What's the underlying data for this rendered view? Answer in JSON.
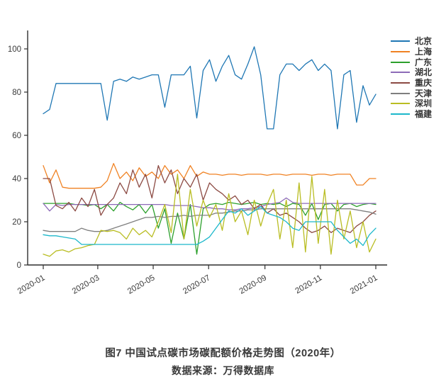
{
  "figure": {
    "caption_title": "图7 中国试点碳市场碳配额价格走势图（2020年）",
    "caption_source": "数据来源：万得数据库"
  },
  "chart_data": {
    "type": "line",
    "title": "中国试点碳市场碳配额价格走势图（2020年）",
    "xlabel": "",
    "ylabel": "",
    "grid": false,
    "legend_position": "right",
    "axis_color": "#2f2f2f",
    "tick_label_color": "#3a3a3a",
    "x_axis": {
      "tick_labels": [
        "2020-01",
        "2020-03",
        "2020-05",
        "2020-07",
        "2020-09",
        "2020-11",
        "2021-01"
      ],
      "tick_day_offsets": [
        0,
        60,
        121,
        182,
        244,
        305,
        366
      ],
      "span_days": 366,
      "label_rotation_deg": 30
    },
    "y_axis": {
      "ticks": [
        0,
        20,
        40,
        60,
        80,
        100
      ],
      "range": [
        0,
        108.5
      ]
    },
    "x_sampling": "weekly index 0-52 spanning 2020-01 to 2021-01",
    "series": [
      {
        "name": "北京",
        "id": "beijing",
        "color": "#1f77b4",
        "values": [
          70,
          72,
          84,
          84,
          84,
          84,
          84,
          84,
          84,
          84,
          67,
          85,
          86,
          85,
          87,
          86,
          87,
          88,
          88,
          73,
          88,
          88,
          88,
          92,
          68,
          90,
          95,
          85,
          92,
          97,
          88,
          86,
          93,
          101,
          88,
          63,
          63,
          88,
          93,
          93,
          90,
          93,
          95,
          90,
          93,
          90,
          63,
          88,
          90,
          66,
          83,
          74,
          79
        ]
      },
      {
        "name": "上海",
        "id": "shanghai",
        "color": "#f08223",
        "values": [
          46,
          38,
          44,
          36,
          35.5,
          35.5,
          35.5,
          35.5,
          35.5,
          36,
          39,
          47,
          40,
          43,
          39,
          45,
          41,
          43,
          40,
          46,
          42,
          44,
          40,
          46,
          41,
          43,
          42,
          42,
          41.5,
          42,
          42,
          41.5,
          42,
          42,
          42,
          41.5,
          42,
          42,
          41.5,
          42,
          42,
          42,
          41.5,
          42,
          42,
          41.5,
          42,
          42,
          42,
          37,
          37,
          40,
          40
        ]
      },
      {
        "name": "广东",
        "id": "guangdong",
        "color": "#2ca02c",
        "values": [
          28.5,
          28.5,
          28.5,
          28.5,
          28.5,
          28,
          28,
          27.5,
          28,
          26,
          28,
          25,
          29,
          27,
          25.5,
          28,
          24,
          28,
          17,
          26,
          10,
          24,
          12,
          28,
          5,
          26,
          28,
          28.5,
          28,
          29,
          28.5,
          28,
          28.5,
          29,
          28,
          28.5,
          28,
          28.5,
          27,
          28.5,
          28,
          23,
          28.5,
          21,
          28,
          28.5,
          25,
          28,
          28.5,
          27,
          28,
          28.5,
          28
        ]
      },
      {
        "name": "湖北",
        "id": "hubei",
        "color": "#8d6bb8",
        "values": [
          28.5,
          25,
          28,
          27.5,
          28,
          28,
          28,
          28,
          28,
          28,
          28,
          28,
          28,
          28,
          28,
          28,
          28,
          28,
          28,
          28,
          27.5,
          27.5,
          27.5,
          27.5,
          27,
          26.5,
          26.5,
          26,
          26,
          25.5,
          25.5,
          26,
          26,
          26.5,
          27,
          28,
          28.5,
          29,
          31,
          29,
          28.5,
          28.5,
          28.5,
          28.5,
          28.5,
          28.5,
          28.5,
          28.5,
          28.5,
          28.5,
          28.5,
          28.5,
          28.5
        ]
      },
      {
        "name": "重庆",
        "id": "chongqing",
        "color": "#8c4a43",
        "values": [
          40,
          40,
          27.5,
          26,
          29,
          25,
          31,
          27,
          35,
          23,
          28,
          31,
          38,
          33,
          44,
          36,
          42,
          31,
          46,
          38,
          44,
          33,
          40,
          36,
          42,
          30,
          38,
          35,
          33,
          30,
          32,
          28,
          30,
          26,
          28,
          24,
          26,
          23,
          24,
          22,
          20,
          17,
          15,
          16,
          18,
          15,
          17,
          16,
          15,
          18,
          20,
          23,
          25
        ]
      },
      {
        "name": "天津",
        "id": "tianjin",
        "color": "#7f7f7f",
        "values": [
          16,
          15.5,
          15.5,
          15.5,
          15.5,
          15.5,
          17,
          16,
          15.5,
          15.5,
          16,
          17,
          18,
          19,
          20,
          21,
          22,
          22,
          22.5,
          22,
          22.5,
          22.5,
          23,
          22.5,
          23,
          23,
          23,
          24,
          24,
          24.5,
          25,
          25,
          25.5,
          25.5,
          26,
          26,
          26,
          26,
          26,
          26,
          26,
          26,
          26,
          26,
          26,
          26,
          26,
          26,
          26,
          25.5,
          25,
          24.5,
          23.5
        ]
      },
      {
        "name": "深圳",
        "id": "shenzhen",
        "color": "#b9bd22",
        "values": [
          5,
          4,
          6.5,
          7,
          6,
          7.5,
          8,
          9,
          9.5,
          16,
          15.5,
          16,
          15,
          12,
          17,
          14,
          16,
          13,
          20,
          28,
          15,
          42,
          12,
          35,
          18,
          30,
          22,
          28,
          16,
          33,
          20,
          25,
          14,
          30,
          18,
          28,
          35,
          12,
          30,
          8,
          38,
          6,
          41,
          10,
          35,
          5,
          30,
          12,
          25,
          8,
          20,
          6,
          12
        ]
      },
      {
        "name": "福建",
        "id": "fujian",
        "color": "#1cb8cb",
        "values": [
          14,
          13.5,
          13.5,
          13,
          12.5,
          12,
          9.5,
          9.5,
          9.5,
          9.5,
          9.5,
          9.5,
          9.5,
          9.5,
          9.5,
          9.5,
          9.5,
          9.5,
          9.5,
          9.5,
          9.5,
          9.5,
          9.5,
          9.5,
          9.5,
          11,
          13,
          17,
          21,
          25,
          24,
          26,
          23,
          25,
          27,
          24,
          23,
          22,
          20,
          17,
          16,
          20,
          20,
          20,
          20,
          20,
          16,
          13,
          10,
          12,
          9,
          14,
          17
        ]
      }
    ]
  }
}
